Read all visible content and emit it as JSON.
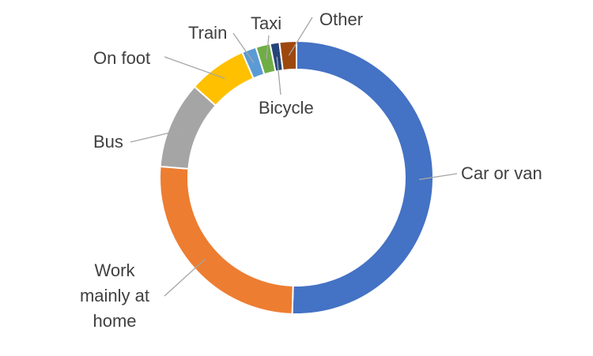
{
  "chart_data": {
    "type": "donut",
    "categories": [
      "Car or van",
      "Work mainly at home",
      "Bus",
      "On foot",
      "Train",
      "Taxi",
      "Bicycle",
      "Other"
    ],
    "values": [
      50.5,
      25.8,
      10.3,
      6.9,
      1.7,
      1.7,
      1.1,
      2.0
    ],
    "colors": [
      "#4472c4",
      "#ed7d31",
      "#a5a5a5",
      "#ffc000",
      "#5b9bd5",
      "#70ad47",
      "#264478",
      "#9e480e"
    ]
  }
}
